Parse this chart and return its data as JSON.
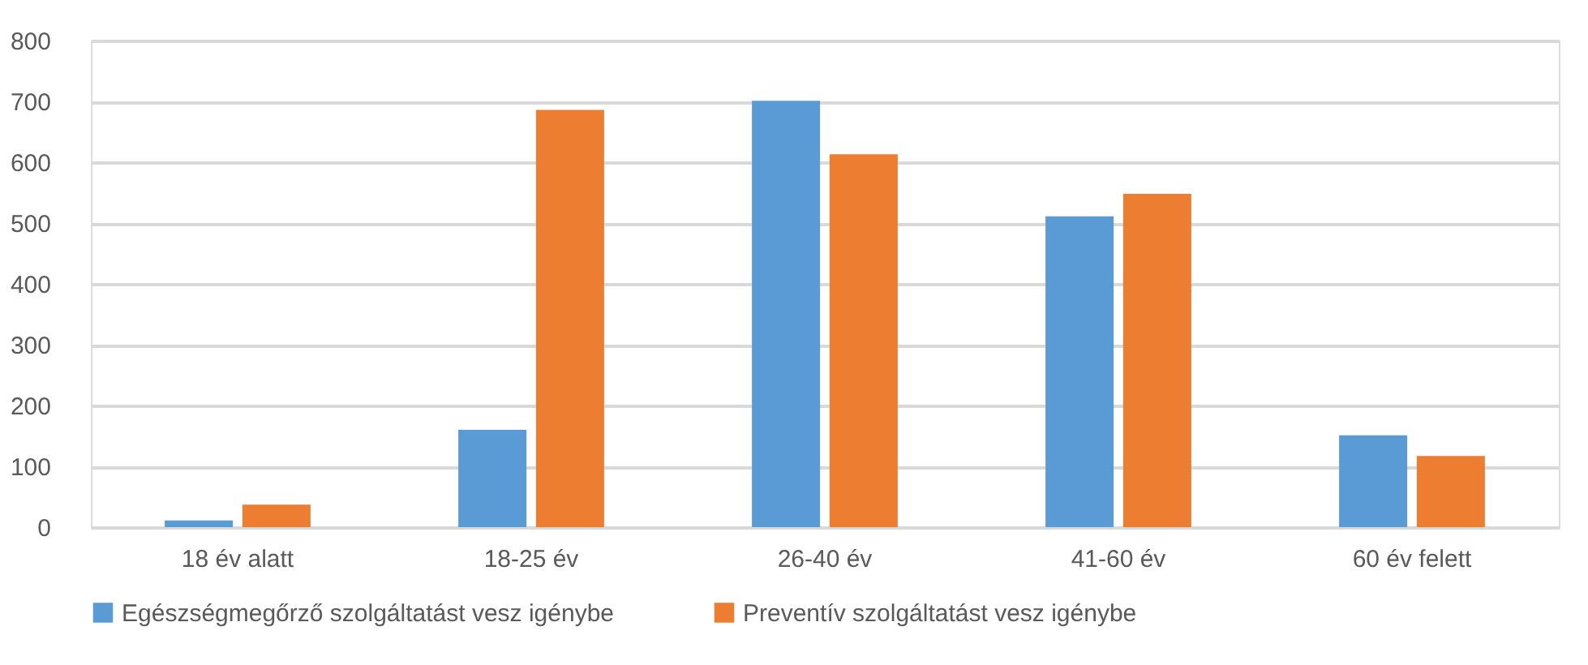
{
  "chart_data": {
    "type": "bar",
    "categories": [
      "18 év alatt",
      "18-25 év",
      "26-40 év",
      "41-60 év",
      "60 év felett"
    ],
    "series": [
      {
        "name": "Egészségmegőrző szolgáltatást vesz igénybe",
        "color": "#5b9bd5",
        "values": [
          11,
          160,
          701,
          511,
          151
        ]
      },
      {
        "name": "Preventív szolgáltatást vesz igénybe",
        "color": "#ed7d31",
        "values": [
          37,
          686,
          613,
          548,
          117
        ]
      }
    ],
    "ylim": [
      0,
      800
    ],
    "yticks": [
      0,
      100,
      200,
      300,
      400,
      500,
      600,
      700,
      800
    ],
    "grid": "y",
    "legend": "bottom"
  }
}
